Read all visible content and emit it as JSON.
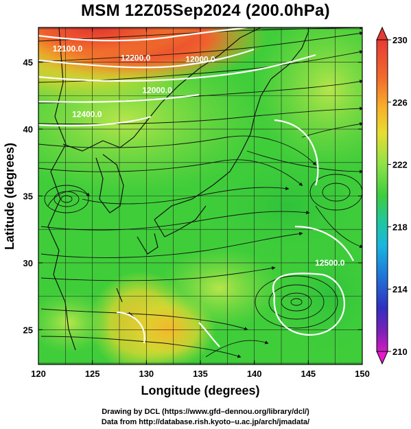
{
  "title": "MSM 12Z05Sep2024 (200.0hPa)",
  "map": {
    "lon_range": [
      120,
      150
    ],
    "lat_range": [
      22.4,
      47.6
    ],
    "x_ticks": [
      120,
      125,
      130,
      135,
      140,
      145,
      150
    ],
    "y_ticks": [
      25,
      30,
      35,
      40,
      45
    ],
    "xlabel": "Longitude (degrees)",
    "ylabel": "Latitude  (degrees)",
    "grid": true,
    "grid_step_deg": 2.5,
    "field": "temperature shading + streamlines + height contours",
    "contours": [
      {
        "label": "12100.0",
        "lon": 122.7,
        "lat": 45.8
      },
      {
        "label": "12200.0",
        "lon": 129.0,
        "lat": 45.1
      },
      {
        "label": "12000.0",
        "lon": 135.0,
        "lat": 45.0
      },
      {
        "label": "12000.0",
        "lon": 131.0,
        "lat": 42.7
      },
      {
        "label": "12400.0",
        "lon": 124.5,
        "lat": 40.9
      },
      {
        "label": "12500.0",
        "lon": 147.0,
        "lat": 29.8
      }
    ],
    "cyclones": [
      {
        "lon": 122.9,
        "lat": 35.7
      },
      {
        "lon": 144.0,
        "lat": 27.4
      }
    ],
    "colors": {
      "hot": "#e8453a",
      "warm": "#f5a623",
      "mid": "#8fe04a",
      "base": "#3fcd3a",
      "contour": "#ffffff",
      "stream": "#111111"
    }
  },
  "colorbar": {
    "ticks": [
      "230",
      "226",
      "222",
      "218",
      "214",
      "210"
    ],
    "min": 210,
    "max": 230
  },
  "credits": [
    "Drawing by DCL (https://www.gfd–dennou.org/library/dcl/)",
    "Data from http://database.rish.kyoto–u.ac.jp/arch/jmadata/"
  ]
}
